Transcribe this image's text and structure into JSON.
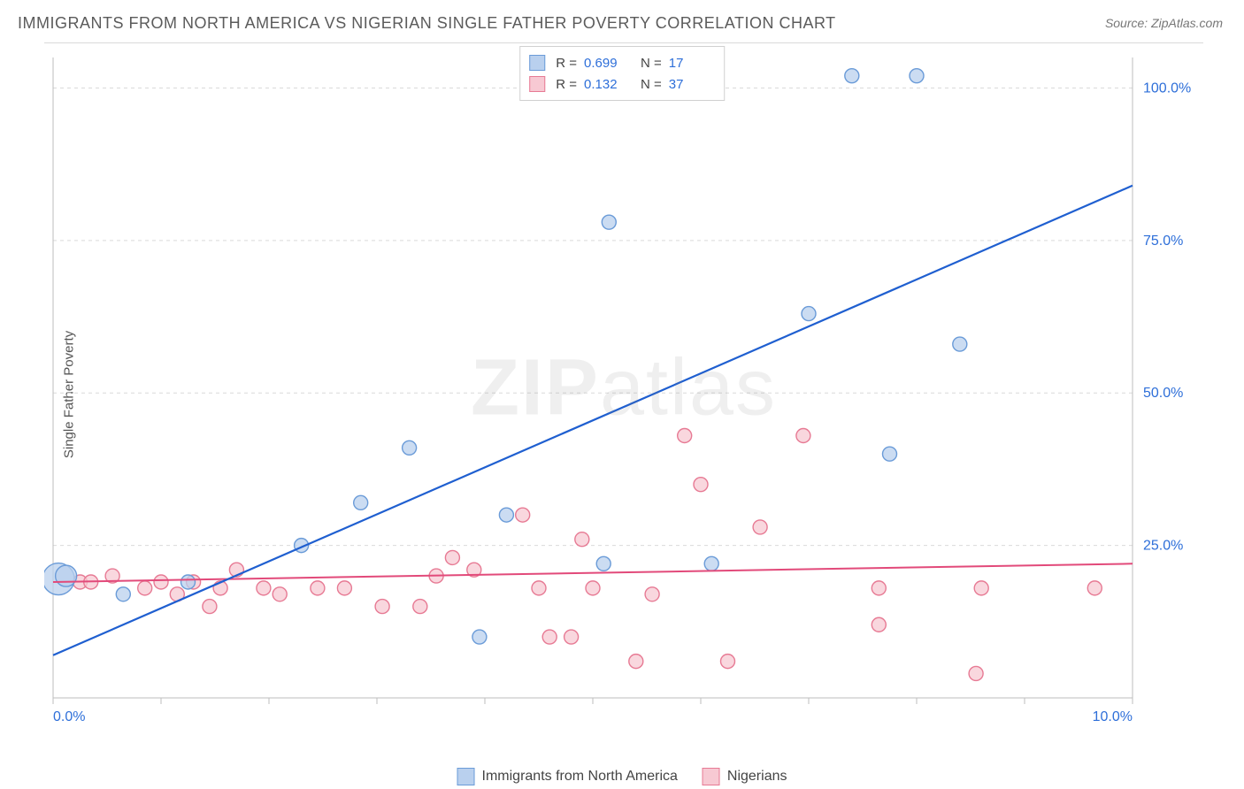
{
  "title": "IMMIGRANTS FROM NORTH AMERICA VS NIGERIAN SINGLE FATHER POVERTY CORRELATION CHART",
  "source_label": "Source:",
  "source_value": "ZipAtlas.com",
  "y_axis_label": "Single Father Poverty",
  "watermark_a": "ZIP",
  "watermark_b": "atlas",
  "chart": {
    "type": "scatter",
    "xlim": [
      0,
      10
    ],
    "ylim": [
      0,
      105
    ],
    "x_ticks": [
      0,
      1,
      2,
      3,
      4,
      5,
      6,
      7,
      8,
      9,
      10
    ],
    "x_tick_labels": {
      "0": "0.0%",
      "10": "10.0%"
    },
    "y_ticks": [
      25,
      50,
      75,
      100
    ],
    "y_tick_labels": {
      "25": "25.0%",
      "50": "50.0%",
      "75": "75.0%",
      "100": "100.0%"
    },
    "background_color": "#ffffff",
    "grid_color": "#d9d9d9",
    "grid_dash": "4,4",
    "axis_color": "#bdbdbd",
    "tick_label_color": "#2e6fd9",
    "point_radius": 8,
    "series": [
      {
        "name": "Immigrants from North America",
        "fill": "#b9d0ee",
        "stroke": "#6a9bd8",
        "line_color": "#1f5fd0",
        "line_width": 2.2,
        "R_label": "R =",
        "R": "0.699",
        "N_label": "N =",
        "N": "17",
        "regression": {
          "x1": 0,
          "y1": 7,
          "x2": 10,
          "y2": 84
        },
        "points": [
          {
            "x": 0.05,
            "y": 19.5,
            "r": 18
          },
          {
            "x": 0.12,
            "y": 20,
            "r": 12
          },
          {
            "x": 0.65,
            "y": 17
          },
          {
            "x": 1.25,
            "y": 19
          },
          {
            "x": 2.3,
            "y": 25
          },
          {
            "x": 2.85,
            "y": 32
          },
          {
            "x": 3.3,
            "y": 41
          },
          {
            "x": 3.95,
            "y": 10
          },
          {
            "x": 4.2,
            "y": 30
          },
          {
            "x": 5.1,
            "y": 22
          },
          {
            "x": 5.15,
            "y": 78
          },
          {
            "x": 6.1,
            "y": 22
          },
          {
            "x": 7.0,
            "y": 63
          },
          {
            "x": 7.4,
            "y": 102
          },
          {
            "x": 7.75,
            "y": 40
          },
          {
            "x": 8.0,
            "y": 102
          },
          {
            "x": 8.4,
            "y": 58
          }
        ]
      },
      {
        "name": "Nigerians",
        "fill": "#f7c9d3",
        "stroke": "#e77a94",
        "line_color": "#e24a7a",
        "line_width": 2,
        "R_label": "R =",
        "R": "0.132",
        "N_label": "N =",
        "N": "37",
        "regression": {
          "x1": 0,
          "y1": 19,
          "x2": 10,
          "y2": 22
        },
        "points": [
          {
            "x": 0.25,
            "y": 19
          },
          {
            "x": 0.35,
            "y": 19
          },
          {
            "x": 0.55,
            "y": 20
          },
          {
            "x": 0.85,
            "y": 18
          },
          {
            "x": 1.0,
            "y": 19
          },
          {
            "x": 1.15,
            "y": 17
          },
          {
            "x": 1.3,
            "y": 19
          },
          {
            "x": 1.45,
            "y": 15
          },
          {
            "x": 1.55,
            "y": 18
          },
          {
            "x": 1.7,
            "y": 21
          },
          {
            "x": 1.95,
            "y": 18
          },
          {
            "x": 2.1,
            "y": 17
          },
          {
            "x": 2.45,
            "y": 18
          },
          {
            "x": 2.7,
            "y": 18
          },
          {
            "x": 3.05,
            "y": 15
          },
          {
            "x": 3.4,
            "y": 15
          },
          {
            "x": 3.55,
            "y": 20
          },
          {
            "x": 3.7,
            "y": 23
          },
          {
            "x": 3.9,
            "y": 21
          },
          {
            "x": 4.35,
            "y": 30
          },
          {
            "x": 4.5,
            "y": 18
          },
          {
            "x": 4.6,
            "y": 10
          },
          {
            "x": 4.8,
            "y": 10
          },
          {
            "x": 4.9,
            "y": 26
          },
          {
            "x": 5.0,
            "y": 18
          },
          {
            "x": 5.4,
            "y": 6
          },
          {
            "x": 5.55,
            "y": 17
          },
          {
            "x": 5.85,
            "y": 43
          },
          {
            "x": 6.0,
            "y": 35
          },
          {
            "x": 6.25,
            "y": 6
          },
          {
            "x": 6.55,
            "y": 28
          },
          {
            "x": 6.95,
            "y": 43
          },
          {
            "x": 7.65,
            "y": 12
          },
          {
            "x": 7.65,
            "y": 18
          },
          {
            "x": 8.55,
            "y": 4
          },
          {
            "x": 8.6,
            "y": 18
          },
          {
            "x": 9.65,
            "y": 18
          }
        ]
      }
    ]
  },
  "legend_bottom": [
    {
      "label": "Immigrants from North America",
      "fill": "#b9d0ee",
      "stroke": "#6a9bd8"
    },
    {
      "label": "Nigerians",
      "fill": "#f7c9d3",
      "stroke": "#e77a94"
    }
  ]
}
